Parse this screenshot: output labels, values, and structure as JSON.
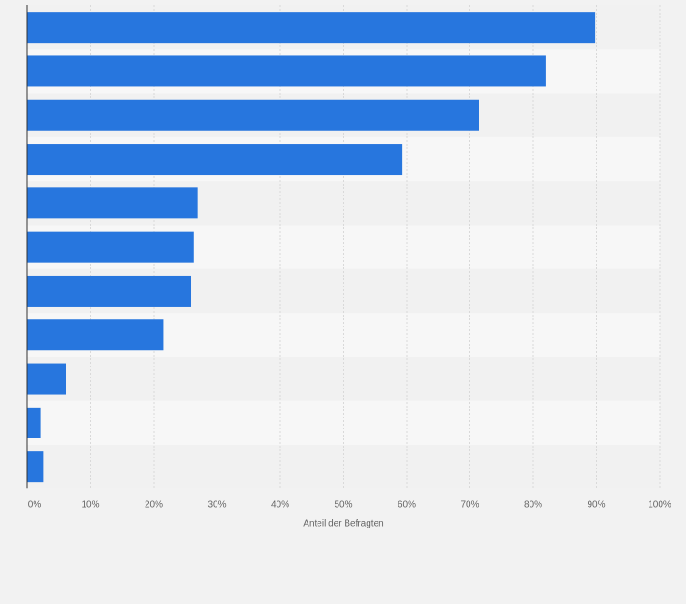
{
  "chart_data": {
    "type": "bar",
    "orientation": "horizontal",
    "categories": [
      "",
      "",
      "",
      "",
      "",
      "",
      "",
      "",
      "",
      "",
      ""
    ],
    "values": [
      89.8,
      82.0,
      71.4,
      59.3,
      27.0,
      26.3,
      25.9,
      21.5,
      6.1,
      2.1,
      2.5
    ],
    "xlabel": "Anteil der Befragten",
    "ylabel": "",
    "xlim": [
      0,
      100
    ],
    "x_ticks": [
      0,
      10,
      20,
      30,
      40,
      50,
      60,
      70,
      80,
      90,
      100
    ],
    "x_tick_labels": [
      "0%",
      "10%",
      "20%",
      "30%",
      "40%",
      "50%",
      "60%",
      "70%",
      "80%",
      "90%",
      "100%"
    ],
    "grid": true,
    "legend": "none",
    "colors": {
      "bar": "#2776de",
      "row_light": "#f7f7f7",
      "row_dark": "#f1f1f1",
      "grid": "#d9d9d9",
      "axis": "#333333",
      "text": "#666666",
      "background": "#f2f2f2"
    }
  }
}
